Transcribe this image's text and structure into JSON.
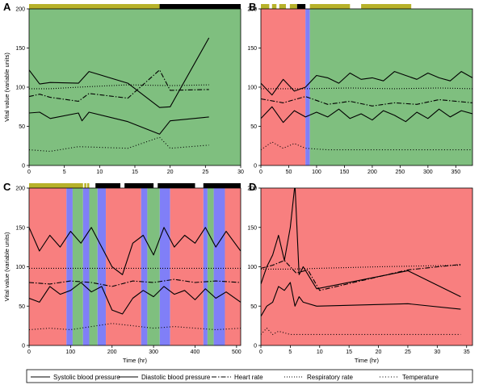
{
  "colors": {
    "red": "#f87f7f",
    "green": "#7fbf7f",
    "blue": "#807ff7",
    "olive": "#b7b22a",
    "black": "#000000"
  },
  "legend": {
    "items": [
      {
        "label": "Systolic blood pressure",
        "style": "solid"
      },
      {
        "label": "Diastolic blood pressure",
        "style": "solid"
      },
      {
        "label": "Heart rate",
        "style": "dashdot"
      },
      {
        "label": "Respiratory rate",
        "style": "dotted"
      },
      {
        "label": "Temperature",
        "style": "dotted"
      }
    ]
  },
  "chart_data": [
    {
      "panel": "A",
      "type": "line",
      "ylabel": "Vital value (variable units)",
      "xlabel": "",
      "xlim": [
        0,
        30
      ],
      "ylim": [
        0,
        200
      ],
      "xticks": [
        0,
        5,
        10,
        15,
        20,
        25,
        30
      ],
      "yticks": [
        0,
        50,
        100,
        150,
        200
      ],
      "bands": [
        {
          "from": 0,
          "to": 30,
          "color": "green"
        }
      ],
      "top_bar": [
        {
          "from": 0,
          "to": 18.5,
          "color": "olive"
        },
        {
          "from": 18.5,
          "to": 30,
          "color": "black"
        }
      ],
      "series": [
        {
          "name": "Systolic blood pressure",
          "x": [
            0,
            1.5,
            3,
            7,
            8.5,
            14,
            18.5,
            20,
            25.5
          ],
          "y": [
            122,
            104,
            106,
            105,
            120,
            105,
            74,
            75,
            163
          ]
        },
        {
          "name": "Diastolic blood pressure",
          "x": [
            0,
            1.5,
            3,
            7,
            7.5,
            8.5,
            14,
            18.5,
            20,
            25.5
          ],
          "y": [
            67,
            68,
            60,
            67,
            57,
            68,
            56,
            40,
            57,
            62
          ]
        },
        {
          "name": "Heart rate",
          "x": [
            0,
            1.5,
            3,
            7,
            8.5,
            14,
            18.5,
            20,
            25.5
          ],
          "y": [
            88,
            91,
            87,
            82,
            92,
            86,
            122,
            96,
            97
          ]
        },
        {
          "name": "Respiratory rate",
          "x": [
            0,
            3,
            7,
            14,
            20,
            25.5
          ],
          "y": [
            98,
            98,
            100,
            103,
            102,
            103
          ]
        },
        {
          "name": "Temperature",
          "x": [
            0,
            3,
            7,
            14,
            18.5,
            20,
            25.5
          ],
          "y": [
            20,
            18,
            24,
            22,
            36,
            22,
            26
          ]
        }
      ]
    },
    {
      "panel": "B",
      "type": "line",
      "ylabel": "",
      "xlabel": "",
      "xlim": [
        0,
        380
      ],
      "ylim": [
        0,
        200
      ],
      "xticks": [
        0,
        50,
        100,
        150,
        200,
        250,
        300,
        350
      ],
      "yticks": [
        0,
        50,
        100,
        150,
        200
      ],
      "bands": [
        {
          "from": 0,
          "to": 80,
          "color": "red"
        },
        {
          "from": 80,
          "to": 88,
          "color": "blue"
        },
        {
          "from": 88,
          "to": 380,
          "color": "green"
        }
      ],
      "top_bar": [
        {
          "from": 0,
          "to": 15,
          "color": "olive"
        },
        {
          "from": 20,
          "to": 28,
          "color": "olive"
        },
        {
          "from": 33,
          "to": 45,
          "color": "olive"
        },
        {
          "from": 52,
          "to": 65,
          "color": "olive"
        },
        {
          "from": 65,
          "to": 80,
          "color": "black"
        },
        {
          "from": 88,
          "to": 160,
          "color": "olive"
        },
        {
          "from": 180,
          "to": 270,
          "color": "olive"
        }
      ],
      "series": [
        {
          "name": "Systolic blood pressure",
          "x": [
            0,
            20,
            40,
            60,
            80,
            100,
            120,
            140,
            160,
            180,
            200,
            220,
            240,
            260,
            280,
            300,
            320,
            340,
            360,
            380
          ],
          "y": [
            105,
            90,
            110,
            95,
            100,
            115,
            112,
            105,
            118,
            110,
            112,
            108,
            120,
            115,
            110,
            118,
            112,
            108,
            120,
            112
          ]
        },
        {
          "name": "Diastolic blood pressure",
          "x": [
            0,
            20,
            40,
            60,
            80,
            100,
            120,
            140,
            160,
            180,
            200,
            220,
            240,
            260,
            280,
            300,
            320,
            340,
            360,
            380
          ],
          "y": [
            60,
            75,
            55,
            70,
            62,
            68,
            62,
            72,
            60,
            66,
            58,
            70,
            64,
            56,
            68,
            60,
            72,
            62,
            70,
            66
          ]
        },
        {
          "name": "Heart rate",
          "x": [
            0,
            40,
            80,
            120,
            160,
            200,
            240,
            280,
            320,
            380
          ],
          "y": [
            85,
            80,
            88,
            78,
            82,
            76,
            80,
            78,
            84,
            80
          ]
        },
        {
          "name": "Respiratory rate",
          "x": [
            0,
            80,
            160,
            240,
            320,
            380
          ],
          "y": [
            98,
            98,
            99,
            98,
            99,
            98
          ]
        },
        {
          "name": "Temperature",
          "x": [
            0,
            20,
            40,
            60,
            80,
            120,
            200,
            280,
            380
          ],
          "y": [
            20,
            30,
            22,
            28,
            22,
            20,
            20,
            20,
            20
          ]
        }
      ]
    },
    {
      "panel": "C",
      "type": "line",
      "ylabel": "Vital value (variable units)",
      "xlabel": "Time (hr)",
      "xlim": [
        0,
        510
      ],
      "ylim": [
        0,
        200
      ],
      "xticks": [
        0,
        100,
        200,
        300,
        400,
        500
      ],
      "yticks": [
        0,
        50,
        100,
        150,
        200
      ],
      "bands": [
        {
          "from": 0,
          "to": 90,
          "color": "red"
        },
        {
          "from": 90,
          "to": 105,
          "color": "blue"
        },
        {
          "from": 105,
          "to": 130,
          "color": "green"
        },
        {
          "from": 130,
          "to": 145,
          "color": "blue"
        },
        {
          "from": 145,
          "to": 165,
          "color": "green"
        },
        {
          "from": 165,
          "to": 185,
          "color": "blue"
        },
        {
          "from": 185,
          "to": 270,
          "color": "red"
        },
        {
          "from": 270,
          "to": 285,
          "color": "blue"
        },
        {
          "from": 285,
          "to": 315,
          "color": "green"
        },
        {
          "from": 315,
          "to": 340,
          "color": "blue"
        },
        {
          "from": 340,
          "to": 420,
          "color": "red"
        },
        {
          "from": 420,
          "to": 430,
          "color": "blue"
        },
        {
          "from": 430,
          "to": 445,
          "color": "green"
        },
        {
          "from": 445,
          "to": 472,
          "color": "blue"
        },
        {
          "from": 472,
          "to": 510,
          "color": "red"
        }
      ],
      "top_bar": [
        {
          "from": 0,
          "to": 130,
          "color": "olive"
        },
        {
          "from": 133,
          "to": 138,
          "color": "olive"
        },
        {
          "from": 140,
          "to": 145,
          "color": "olive"
        },
        {
          "from": 160,
          "to": 220,
          "color": "black"
        },
        {
          "from": 230,
          "to": 300,
          "color": "black"
        },
        {
          "from": 310,
          "to": 400,
          "color": "black"
        },
        {
          "from": 420,
          "to": 510,
          "color": "black"
        }
      ],
      "series": [
        {
          "name": "Systolic blood pressure",
          "x": [
            0,
            25,
            50,
            75,
            100,
            125,
            150,
            175,
            200,
            225,
            250,
            275,
            300,
            325,
            350,
            375,
            400,
            425,
            450,
            475,
            510
          ],
          "y": [
            150,
            120,
            140,
            125,
            145,
            130,
            150,
            125,
            100,
            90,
            130,
            140,
            115,
            150,
            125,
            140,
            130,
            150,
            125,
            145,
            120
          ]
        },
        {
          "name": "Diastolic blood pressure",
          "x": [
            0,
            25,
            50,
            75,
            100,
            125,
            150,
            175,
            200,
            225,
            250,
            275,
            300,
            325,
            350,
            375,
            400,
            425,
            450,
            475,
            510
          ],
          "y": [
            60,
            55,
            75,
            65,
            70,
            80,
            68,
            75,
            45,
            40,
            60,
            70,
            62,
            75,
            65,
            70,
            58,
            72,
            60,
            68,
            55
          ]
        },
        {
          "name": "Heart rate",
          "x": [
            0,
            50,
            100,
            150,
            200,
            250,
            300,
            350,
            400,
            450,
            510
          ],
          "y": [
            80,
            78,
            82,
            80,
            75,
            82,
            80,
            84,
            80,
            82,
            80
          ]
        },
        {
          "name": "Respiratory rate",
          "x": [
            0,
            100,
            200,
            300,
            400,
            510
          ],
          "y": [
            98,
            98,
            98,
            98,
            98,
            98
          ]
        },
        {
          "name": "Temperature",
          "x": [
            0,
            50,
            100,
            150,
            200,
            250,
            300,
            350,
            400,
            450,
            510
          ],
          "y": [
            20,
            22,
            20,
            24,
            28,
            25,
            22,
            24,
            22,
            20,
            22
          ]
        }
      ]
    },
    {
      "panel": "D",
      "type": "line",
      "ylabel": "",
      "xlabel": "Time (hr)",
      "xlim": [
        0,
        36
      ],
      "ylim": [
        0,
        200
      ],
      "xticks": [
        0,
        5,
        10,
        15,
        20,
        25,
        30,
        35
      ],
      "yticks": [
        0,
        50,
        100,
        150,
        200
      ],
      "bands": [
        {
          "from": 0,
          "to": 36,
          "color": "red"
        }
      ],
      "top_bar": [],
      "series": [
        {
          "name": "Systolic blood pressure",
          "x": [
            0,
            1,
            2,
            3,
            4,
            5,
            5.8,
            6.5,
            7.2,
            9.5,
            25,
            34
          ],
          "y": [
            78,
            100,
            115,
            140,
            108,
            150,
            205,
            90,
            100,
            72,
            95,
            62
          ]
        },
        {
          "name": "Diastolic blood pressure",
          "x": [
            0,
            1,
            2,
            3,
            4,
            5,
            5.8,
            6.5,
            7.2,
            9.5,
            25,
            34
          ],
          "y": [
            37,
            50,
            55,
            75,
            70,
            80,
            50,
            62,
            55,
            50,
            53,
            46
          ]
        },
        {
          "name": "Heart rate",
          "x": [
            0,
            2,
            4,
            6,
            8,
            10,
            25,
            34
          ],
          "y": [
            98,
            102,
            108,
            92,
            96,
            70,
            96,
            103
          ]
        },
        {
          "name": "Respiratory rate",
          "x": [
            0,
            5,
            10,
            20,
            34
          ],
          "y": [
            97,
            97,
            98,
            100,
            102
          ]
        },
        {
          "name": "Temperature",
          "x": [
            0,
            1,
            2,
            3,
            5,
            10,
            20,
            34
          ],
          "y": [
            14,
            22,
            14,
            18,
            14,
            14,
            14,
            14
          ]
        }
      ]
    }
  ],
  "panel_letters": [
    "A",
    "B",
    "C",
    "D"
  ]
}
